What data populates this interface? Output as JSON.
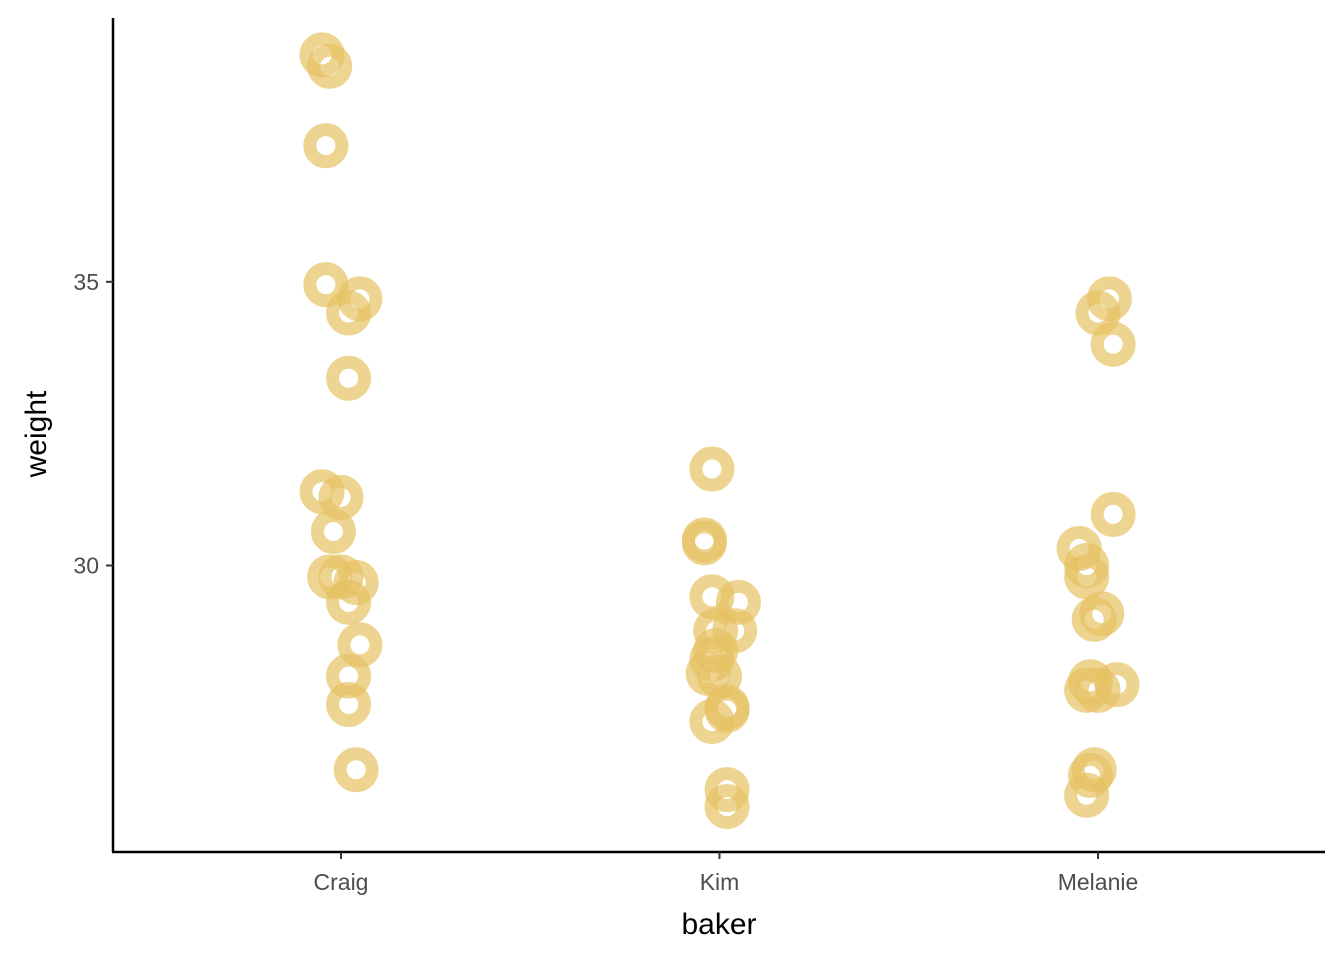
{
  "chart_data": {
    "type": "scatter",
    "xlabel": "baker",
    "ylabel": "weight",
    "categories": [
      "Craig",
      "Kim",
      "Melanie"
    ],
    "y_ticks": [
      30,
      35
    ],
    "ylim": [
      24.95,
      39.65
    ],
    "point_color": "#E6C263",
    "grid": false,
    "legend": "none",
    "points": [
      {
        "category": "Craig",
        "jitter": -0.05,
        "y": 39.0
      },
      {
        "category": "Craig",
        "jitter": -0.03,
        "y": 38.8
      },
      {
        "category": "Craig",
        "jitter": -0.04,
        "y": 37.4
      },
      {
        "category": "Craig",
        "jitter": -0.04,
        "y": 34.95
      },
      {
        "category": "Craig",
        "jitter": 0.05,
        "y": 34.7
      },
      {
        "category": "Craig",
        "jitter": 0.02,
        "y": 34.45
      },
      {
        "category": "Craig",
        "jitter": 0.02,
        "y": 33.3
      },
      {
        "category": "Craig",
        "jitter": -0.05,
        "y": 31.3
      },
      {
        "category": "Craig",
        "jitter": 0.0,
        "y": 31.2
      },
      {
        "category": "Craig",
        "jitter": -0.02,
        "y": 30.6
      },
      {
        "category": "Craig",
        "jitter": -0.03,
        "y": 29.8
      },
      {
        "category": "Craig",
        "jitter": 0.0,
        "y": 29.8
      },
      {
        "category": "Craig",
        "jitter": 0.04,
        "y": 29.7
      },
      {
        "category": "Craig",
        "jitter": 0.02,
        "y": 29.35
      },
      {
        "category": "Craig",
        "jitter": 0.05,
        "y": 28.6
      },
      {
        "category": "Craig",
        "jitter": 0.02,
        "y": 28.05
      },
      {
        "category": "Craig",
        "jitter": 0.02,
        "y": 27.55
      },
      {
        "category": "Craig",
        "jitter": 0.04,
        "y": 26.4
      },
      {
        "category": "Kim",
        "jitter": -0.02,
        "y": 31.7
      },
      {
        "category": "Kim",
        "jitter": -0.04,
        "y": 30.45
      },
      {
        "category": "Kim",
        "jitter": -0.04,
        "y": 30.4
      },
      {
        "category": "Kim",
        "jitter": -0.02,
        "y": 29.45
      },
      {
        "category": "Kim",
        "jitter": 0.05,
        "y": 29.35
      },
      {
        "category": "Kim",
        "jitter": -0.01,
        "y": 28.85
      },
      {
        "category": "Kim",
        "jitter": 0.04,
        "y": 28.85
      },
      {
        "category": "Kim",
        "jitter": -0.01,
        "y": 28.5
      },
      {
        "category": "Kim",
        "jitter": -0.02,
        "y": 28.35
      },
      {
        "category": "Kim",
        "jitter": -0.03,
        "y": 28.1
      },
      {
        "category": "Kim",
        "jitter": 0.0,
        "y": 28.05
      },
      {
        "category": "Kim",
        "jitter": 0.02,
        "y": 27.5
      },
      {
        "category": "Kim",
        "jitter": 0.02,
        "y": 27.45
      },
      {
        "category": "Kim",
        "jitter": -0.02,
        "y": 27.25
      },
      {
        "category": "Kim",
        "jitter": 0.02,
        "y": 26.05
      },
      {
        "category": "Kim",
        "jitter": 0.02,
        "y": 25.75
      },
      {
        "category": "Melanie",
        "jitter": 0.03,
        "y": 34.7
      },
      {
        "category": "Melanie",
        "jitter": 0.0,
        "y": 34.45
      },
      {
        "category": "Melanie",
        "jitter": 0.04,
        "y": 33.9
      },
      {
        "category": "Melanie",
        "jitter": 0.04,
        "y": 30.9
      },
      {
        "category": "Melanie",
        "jitter": -0.05,
        "y": 30.3
      },
      {
        "category": "Melanie",
        "jitter": -0.03,
        "y": 30.0
      },
      {
        "category": "Melanie",
        "jitter": -0.03,
        "y": 29.8
      },
      {
        "category": "Melanie",
        "jitter": 0.01,
        "y": 29.15
      },
      {
        "category": "Melanie",
        "jitter": -0.01,
        "y": 29.05
      },
      {
        "category": "Melanie",
        "jitter": -0.02,
        "y": 27.95
      },
      {
        "category": "Melanie",
        "jitter": 0.05,
        "y": 27.9
      },
      {
        "category": "Melanie",
        "jitter": -0.03,
        "y": 27.8
      },
      {
        "category": "Melanie",
        "jitter": 0.0,
        "y": 27.8
      },
      {
        "category": "Melanie",
        "jitter": -0.01,
        "y": 26.4
      },
      {
        "category": "Melanie",
        "jitter": -0.02,
        "y": 26.3
      },
      {
        "category": "Melanie",
        "jitter": -0.03,
        "y": 25.95
      }
    ]
  }
}
